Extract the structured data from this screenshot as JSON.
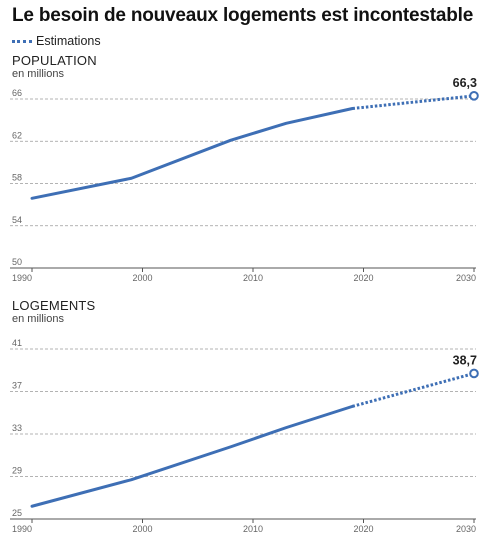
{
  "title": "Le besoin de nouveaux logements est incontestable",
  "legend": {
    "label": "Estimations",
    "color": "#3e6fb5"
  },
  "colors": {
    "line": "#3e6fb5",
    "grid": "#9a9a9a",
    "axis": "#555555"
  },
  "chart_data": [
    {
      "type": "line",
      "title": "POPULATION",
      "subtitle": "en millions",
      "x": [
        1990,
        1999,
        2008,
        2013,
        2019,
        2030
      ],
      "values": [
        56.6,
        58.5,
        62.1,
        63.7,
        65.1,
        66.3
      ],
      "estimate_from_x": 2019,
      "end_label": "66,3",
      "xlim": [
        1990,
        2030
      ],
      "ylim": [
        50,
        66
      ],
      "yticks": [
        "50",
        "54",
        "58",
        "62",
        "66"
      ],
      "xticks": [
        "1990",
        "2000",
        "2010",
        "2020",
        "2030"
      ],
      "grid": true
    },
    {
      "type": "line",
      "title": "LOGEMENTS",
      "subtitle": "en millions",
      "x": [
        1990,
        1999,
        2008,
        2013,
        2019,
        2030
      ],
      "values": [
        26.2,
        28.7,
        31.8,
        33.6,
        35.6,
        38.7
      ],
      "estimate_from_x": 2019,
      "end_label": "38,7",
      "xlim": [
        1990,
        2030
      ],
      "ylim": [
        25,
        41
      ],
      "yticks": [
        "25",
        "29",
        "33",
        "37",
        "41"
      ],
      "xticks": [
        "1990",
        "2000",
        "2010",
        "2020",
        "2030"
      ],
      "grid": true
    }
  ]
}
